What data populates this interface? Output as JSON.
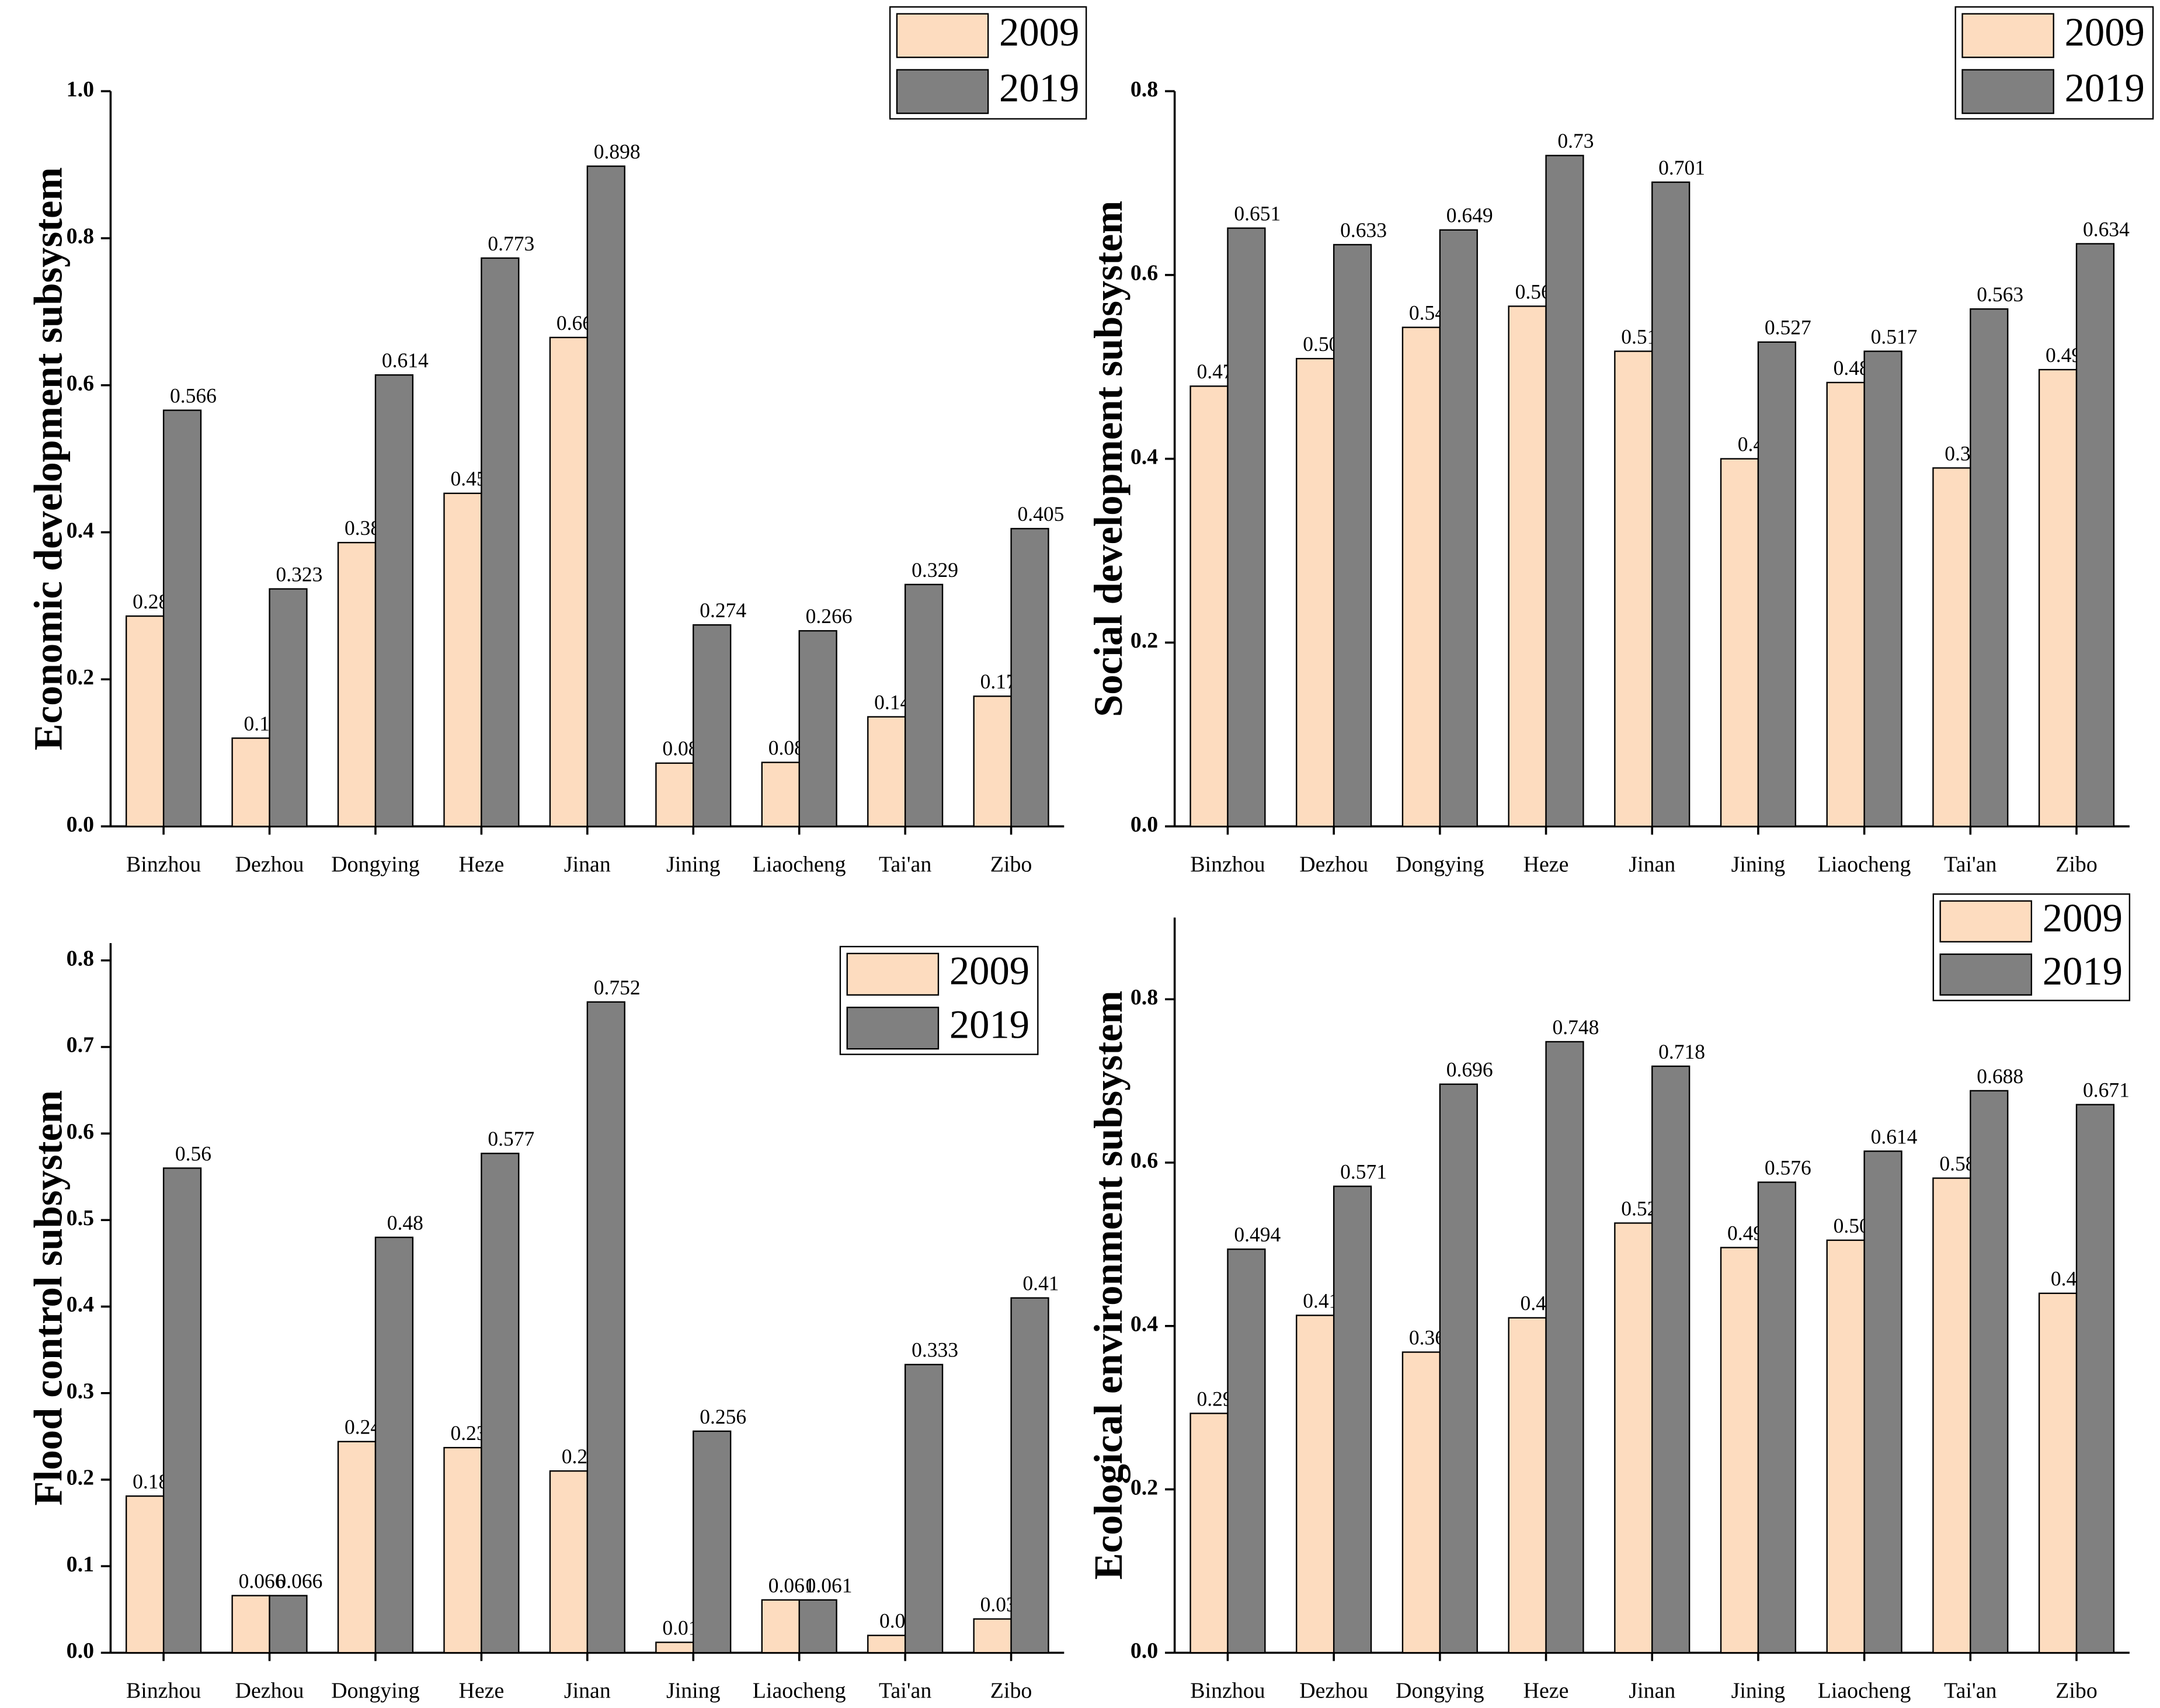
{
  "chart_data": [
    {
      "type": "bar",
      "y_label": "Economic development subsystem",
      "categories": [
        "Binzhou",
        "Dezhou",
        "Dongying",
        "Heze",
        "Jinan",
        "Jining",
        "Liaocheng",
        "Tai'an",
        "Zibo"
      ],
      "series": [
        {
          "name": "2009",
          "color": "#fddcbf",
          "values": [
            0.286,
            0.12,
            0.386,
            0.453,
            0.665,
            0.086,
            0.087,
            0.149,
            0.177
          ]
        },
        {
          "name": "2019",
          "color": "#808080",
          "values": [
            0.566,
            0.323,
            0.614,
            0.773,
            0.898,
            0.274,
            0.266,
            0.329,
            0.405
          ]
        }
      ],
      "ylim": [
        0,
        1
      ],
      "yticks": [
        {
          "value": 0,
          "label": "0.0"
        },
        0.2,
        0.4,
        0.6,
        0.8,
        {
          "value": 1,
          "label": "1.0"
        }
      ],
      "legend": "upper right"
    },
    {
      "type": "bar",
      "y_label": "Social development subsystem",
      "categories": [
        "Binzhou",
        "Dezhou",
        "Dongying",
        "Heze",
        "Jinan",
        "Jining",
        "Liaocheng",
        "Tai'an",
        "Zibo"
      ],
      "series": [
        {
          "name": "2009",
          "color": "#fddcbf",
          "values": [
            0.479,
            0.509,
            0.543,
            0.566,
            0.517,
            0.4,
            0.483,
            0.39,
            0.497
          ]
        },
        {
          "name": "2019",
          "color": "#808080",
          "values": [
            0.651,
            0.633,
            0.649,
            0.73,
            0.701,
            0.527,
            0.517,
            0.563,
            0.634
          ]
        }
      ],
      "ylim": [
        0,
        0.8
      ],
      "yticks": [
        {
          "value": 0,
          "label": "0.0"
        },
        0.2,
        0.4,
        0.6,
        0.8
      ],
      "legend": "upper right"
    },
    {
      "type": "bar",
      "y_label": "Flood control subsystem",
      "categories": [
        "Binzhou",
        "Dezhou",
        "Dongying",
        "Heze",
        "Jinan",
        "Jining",
        "Liaocheng",
        "Tai'an",
        "Zibo"
      ],
      "series": [
        {
          "name": "2009",
          "color": "#fddcbf",
          "values": [
            0.181,
            0.066,
            0.244,
            0.237,
            0.21,
            0.012,
            0.061,
            0.02,
            0.039
          ]
        },
        {
          "name": "2019",
          "color": "#808080",
          "values": [
            0.56,
            0.066,
            0.48,
            0.577,
            0.752,
            0.256,
            0.061,
            0.333,
            0.41
          ]
        }
      ],
      "ylim": [
        0,
        0.82
      ],
      "yticks": [
        {
          "value": 0,
          "label": "0.0"
        },
        0.1,
        0.2,
        0.3,
        0.4,
        0.5,
        0.6,
        0.7,
        0.8
      ],
      "legend": "upper right"
    },
    {
      "type": "bar",
      "y_label": "Ecological environment subsystem",
      "categories": [
        "Binzhou",
        "Dezhou",
        "Dongying",
        "Heze",
        "Jinan",
        "Jining",
        "Liaocheng",
        "Tai'an",
        "Zibo"
      ],
      "series": [
        {
          "name": "2009",
          "color": "#fddcbf",
          "values": [
            0.293,
            0.413,
            0.368,
            0.41,
            0.526,
            0.496,
            0.505,
            0.581,
            0.44
          ]
        },
        {
          "name": "2019",
          "color": "#808080",
          "values": [
            0.494,
            0.571,
            0.696,
            0.748,
            0.718,
            0.576,
            0.614,
            0.688,
            0.671
          ]
        }
      ],
      "ylim": [
        0,
        0.9
      ],
      "yticks": [
        {
          "value": 0,
          "label": "0.0"
        },
        0.2,
        0.4,
        0.6,
        0.8
      ],
      "legend": "upper right"
    }
  ]
}
